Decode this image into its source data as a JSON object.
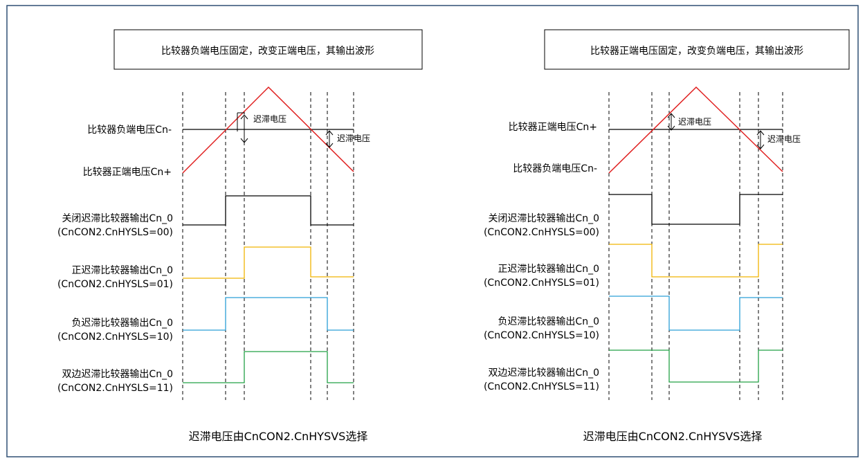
{
  "colors": {
    "frame": "#2f4f73",
    "input_ramp": "#e02020",
    "reference": "#000000",
    "out_off": "#000000",
    "out_pos": "#f0b400",
    "out_neg": "#2a9fd6",
    "out_both": "#22a045"
  },
  "left": {
    "title": "比较器负端电压固定，改变正端电压，其输出波形",
    "ref_label": "比较器负端电压Cn-",
    "ramp_label": "比较器正端电压Cn+",
    "hyst_label_top": "迟滞电压",
    "hyst_label_bottom": "迟滞电压",
    "outputs": [
      {
        "name": "关闭迟滞比较器输出Cn_0",
        "config": "(CnCON2.CnHYSLS=00)"
      },
      {
        "name": "正迟滞比较器输出Cn_0",
        "config": "(CnCON2.CnHYSLS=01)"
      },
      {
        "name": "负迟滞比较器输出Cn_0",
        "config": "(CnCON2.CnHYSLS=10)"
      },
      {
        "name": "双边迟滞比较器输出Cn_0",
        "config": "(CnCON2.CnHYSLS=11)"
      }
    ],
    "footer": "迟滞电压由CnCON2.CnHYSVS选择"
  },
  "right": {
    "title": "比较器正端电压固定，改变负端电压，其输出波形",
    "ref_label": "比较器正端电压Cn+",
    "ramp_label": "比较器负端电压Cn-",
    "hyst_label_top": "迟滞电压",
    "hyst_label_bottom": "迟滞电压",
    "outputs": [
      {
        "name": "关闭迟滞比较器输出Cn_0",
        "config": "(CnCON2.CnHYSLS=00)"
      },
      {
        "name": "正迟滞比较器输出Cn_0",
        "config": "(CnCON2.CnHYSLS=01)"
      },
      {
        "name": "负迟滞比较器输出Cn_0",
        "config": "(CnCON2.CnHYSLS=10)"
      },
      {
        "name": "双边迟滞比较器输出Cn_0",
        "config": "(CnCON2.CnHYSLS=11)"
      }
    ],
    "footer": "迟滞电压由CnCON2.CnHYSVS选择"
  }
}
